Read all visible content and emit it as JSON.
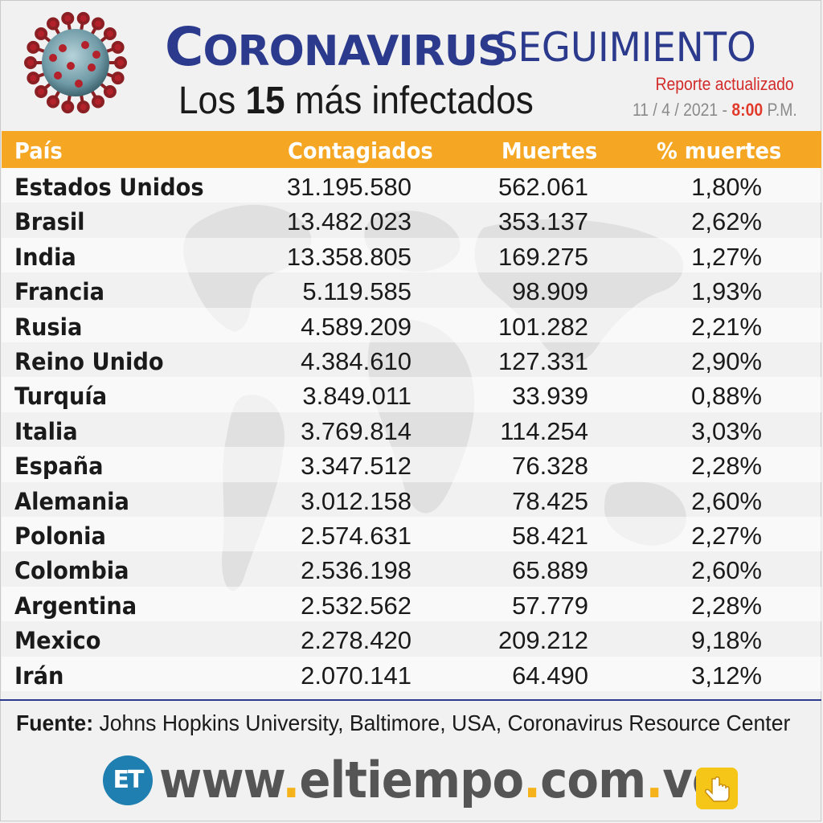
{
  "header": {
    "title_first": "C",
    "title_rest": "ORONAVIRUS",
    "title_second": "SEGUIMIENTO",
    "subtitle_pre": "Los ",
    "subtitle_num": "15",
    "subtitle_post": " más infectados",
    "report_label": "Reporte actualizado",
    "report_date": "11 / 4 / 2021 - ",
    "report_time": "8:00",
    "report_ampm": " P.M."
  },
  "table": {
    "columns": [
      "País",
      "Contagiados",
      "Muertes",
      "% muertes"
    ],
    "rows": [
      {
        "country": "Estados Unidos",
        "cases": "31.195.580",
        "deaths": "562.061",
        "pct": "1,80%"
      },
      {
        "country": "Brasil",
        "cases": "13.482.023",
        "deaths": "353.137",
        "pct": "2,62%"
      },
      {
        "country": "India",
        "cases": "13.358.805",
        "deaths": "169.275",
        "pct": "1,27%"
      },
      {
        "country": "Francia",
        "cases": "5.119.585",
        "deaths": "98.909",
        "pct": "1,93%"
      },
      {
        "country": "Rusia",
        "cases": "4.589.209",
        "deaths": "101.282",
        "pct": "2,21%"
      },
      {
        "country": "Reino Unido",
        "cases": "4.384.610",
        "deaths": "127.331",
        "pct": "2,90%"
      },
      {
        "country": "Turquía",
        "cases": "3.849.011",
        "deaths": "33.939",
        "pct": "0,88%"
      },
      {
        "country": "Italia",
        "cases": "3.769.814",
        "deaths": "114.254",
        "pct": "3,03%"
      },
      {
        "country": "España",
        "cases": "3.347.512",
        "deaths": "76.328",
        "pct": "2,28%"
      },
      {
        "country": "Alemania",
        "cases": "3.012.158",
        "deaths": "78.425",
        "pct": "2,60%"
      },
      {
        "country": "Polonia",
        "cases": "2.574.631",
        "deaths": "58.421",
        "pct": "2,27%"
      },
      {
        "country": "Colombia",
        "cases": "2.536.198",
        "deaths": "65.889",
        "pct": "2,60%"
      },
      {
        "country": "Argentina",
        "cases": "2.532.562",
        "deaths": "57.779",
        "pct": "2,28%"
      },
      {
        "country": "Mexico",
        "cases": "2.278.420",
        "deaths": "209.212",
        "pct": "9,18%"
      },
      {
        "country": "Irán",
        "cases": "2.070.141",
        "deaths": "64.490",
        "pct": "3,12%"
      }
    ]
  },
  "source": {
    "label": "Fuente:",
    "text": " Johns Hopkins University, Baltimore, USA, Coronavirus Resource Center"
  },
  "footer": {
    "logo_text": "ET",
    "url_www": "www",
    "url_dot1": ".",
    "url_name": "eltiempo",
    "url_dot2": ".",
    "url_com": "com",
    "url_dot3": ".",
    "url_ve": "ve",
    "icon": "hand-pointer-icon"
  },
  "colors": {
    "title_blue": "#2b3a8c",
    "header_orange": "#f5a623",
    "report_red": "#d32a2a",
    "logo_blue": "#1f7fb0",
    "url_dot_yellow": "#f5b21a"
  }
}
